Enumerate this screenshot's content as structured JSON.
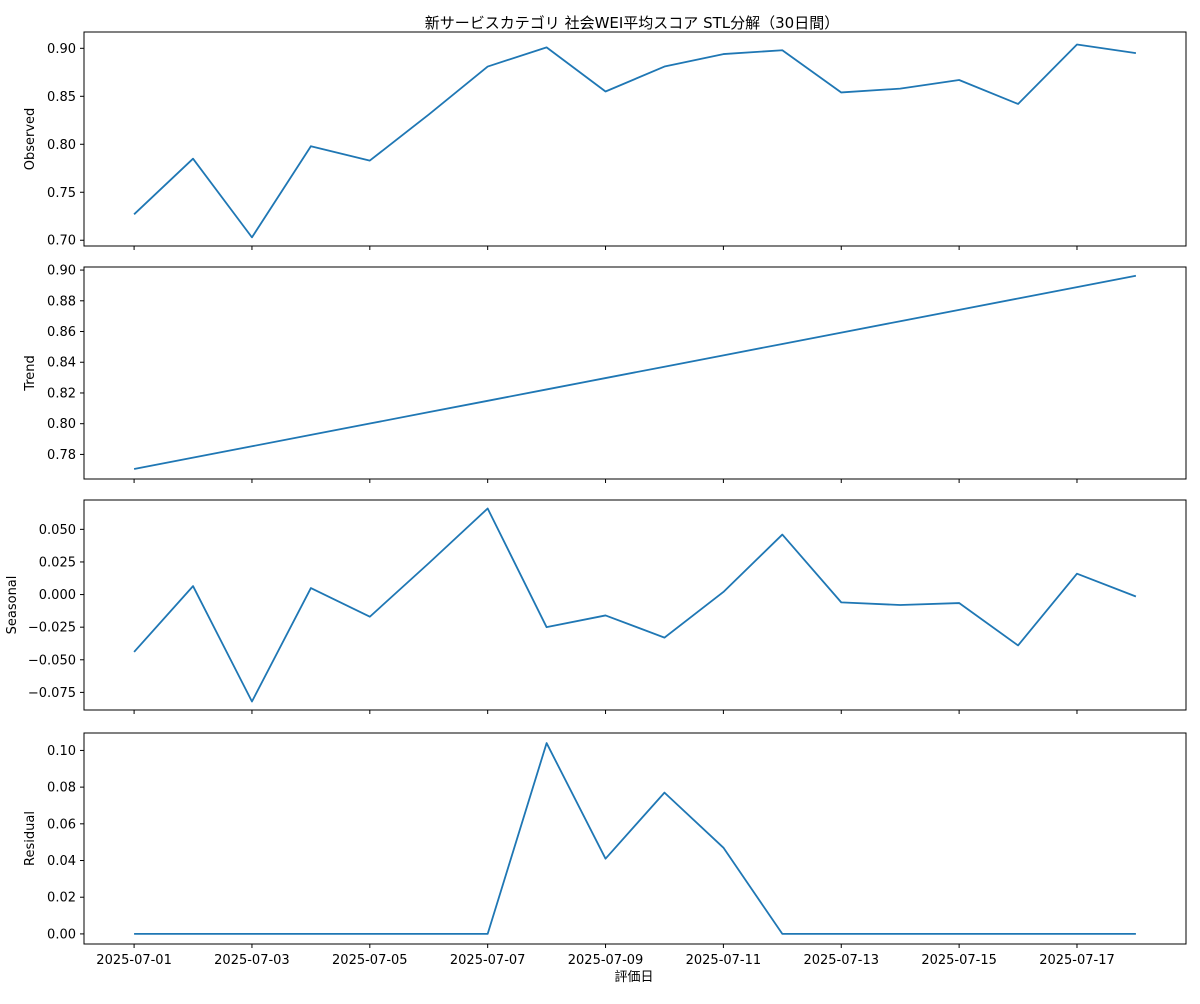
{
  "chart_data": {
    "type": "line",
    "title": "新サービスカテゴリ 社会WEI平均スコア STL分解（30日間）",
    "xlabel": "評価日",
    "x": [
      "2025-07-01",
      "2025-07-02",
      "2025-07-03",
      "2025-07-04",
      "2025-07-05",
      "2025-07-06",
      "2025-07-07",
      "2025-07-08",
      "2025-07-09",
      "2025-07-10",
      "2025-07-11",
      "2025-07-12",
      "2025-07-13",
      "2025-07-14",
      "2025-07-15",
      "2025-07-16",
      "2025-07-17",
      "2025-07-18"
    ],
    "x_ticks": [
      "2025-07-01",
      "2025-07-03",
      "2025-07-05",
      "2025-07-07",
      "2025-07-09",
      "2025-07-11",
      "2025-07-13",
      "2025-07-15",
      "2025-07-17"
    ],
    "line_color": "#1f77b4",
    "grid": false,
    "panels": [
      {
        "ylabel": "Observed",
        "ylim": [
          0.694,
          0.917
        ],
        "yticks": [
          0.7,
          0.75,
          0.8,
          0.85,
          0.9
        ],
        "ytick_labels": [
          "0.70",
          "0.75",
          "0.80",
          "0.85",
          "0.90"
        ],
        "values": [
          0.727,
          0.785,
          0.703,
          0.798,
          0.783,
          0.831,
          0.881,
          0.901,
          0.855,
          0.881,
          0.894,
          0.898,
          0.854,
          0.858,
          0.867,
          0.842,
          0.904,
          0.895
        ]
      },
      {
        "ylabel": "Trend",
        "ylim": [
          0.764,
          0.902
        ],
        "yticks": [
          0.78,
          0.8,
          0.82,
          0.84,
          0.86,
          0.88,
          0.9
        ],
        "ytick_labels": [
          "0.78",
          "0.80",
          "0.82",
          "0.84",
          "0.86",
          "0.88",
          "0.90"
        ],
        "values": [
          0.7705,
          0.7779,
          0.7853,
          0.7927,
          0.8001,
          0.8075,
          0.8149,
          0.8223,
          0.8297,
          0.8371,
          0.8445,
          0.8519,
          0.8593,
          0.8667,
          0.8741,
          0.8815,
          0.8889,
          0.8963
        ]
      },
      {
        "ylabel": "Seasonal",
        "ylim": [
          -0.0885,
          0.0725
        ],
        "yticks": [
          -0.075,
          -0.05,
          -0.025,
          0.0,
          0.025,
          0.05
        ],
        "ytick_labels": [
          "−0.075",
          "−0.050",
          "−0.025",
          "0.000",
          "0.025",
          "0.050"
        ],
        "values": [
          -0.044,
          0.0065,
          -0.082,
          0.005,
          -0.017,
          0.024,
          0.066,
          -0.025,
          -0.016,
          -0.033,
          0.002,
          0.046,
          -0.006,
          -0.008,
          -0.0065,
          -0.039,
          0.016,
          -0.0015
        ]
      },
      {
        "ylabel": "Residual",
        "ylim": [
          -0.0055,
          0.1095
        ],
        "yticks": [
          0.0,
          0.02,
          0.04,
          0.06,
          0.08,
          0.1
        ],
        "ytick_labels": [
          "0.00",
          "0.02",
          "0.04",
          "0.06",
          "0.08",
          "0.10"
        ],
        "values": [
          0,
          0,
          0,
          0,
          0,
          0,
          0,
          0.104,
          0.041,
          0.077,
          0.047,
          0,
          0,
          0,
          0,
          0,
          0,
          0
        ]
      }
    ]
  }
}
